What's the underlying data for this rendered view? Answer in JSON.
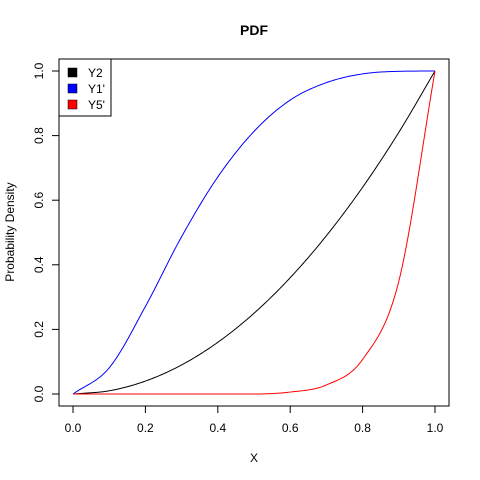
{
  "chart_data": {
    "type": "line",
    "title": "PDF",
    "xlabel": "X",
    "ylabel": "Probability Density",
    "xlim": [
      0,
      1
    ],
    "ylim": [
      0,
      1
    ],
    "x_ticks": [
      "0.0",
      "0.2",
      "0.4",
      "0.6",
      "0.8",
      "1.0"
    ],
    "y_ticks": [
      "0.0",
      "0.2",
      "0.4",
      "0.6",
      "0.8",
      "1.0"
    ],
    "grid": false,
    "legend_position": "top-left",
    "series": [
      {
        "name": "Y2",
        "color": "#000000",
        "x": [
          0.0,
          0.1,
          0.2,
          0.3,
          0.4,
          0.5,
          0.6,
          0.7,
          0.8,
          0.9,
          1.0
        ],
        "values": [
          0.0,
          0.01,
          0.04,
          0.09,
          0.16,
          0.25,
          0.36,
          0.49,
          0.64,
          0.81,
          1.0
        ]
      },
      {
        "name": "Y1'",
        "color": "#0000ff",
        "x": [
          0.0,
          0.1,
          0.2,
          0.3,
          0.4,
          0.5,
          0.6,
          0.7,
          0.8,
          0.9,
          1.0
        ],
        "values": [
          0.0,
          0.081,
          0.271,
          0.487,
          0.672,
          0.813,
          0.91,
          0.964,
          0.991,
          0.999,
          1.0
        ]
      },
      {
        "name": "Y5'",
        "color": "#ff0000",
        "x": [
          0.0,
          0.1,
          0.2,
          0.3,
          0.4,
          0.5,
          0.6,
          0.7,
          0.8,
          0.9,
          1.0
        ],
        "values": [
          0.0,
          0.0,
          0.0,
          0.0,
          0.0,
          0.0,
          0.006,
          0.028,
          0.107,
          0.349,
          1.0
        ]
      }
    ]
  }
}
